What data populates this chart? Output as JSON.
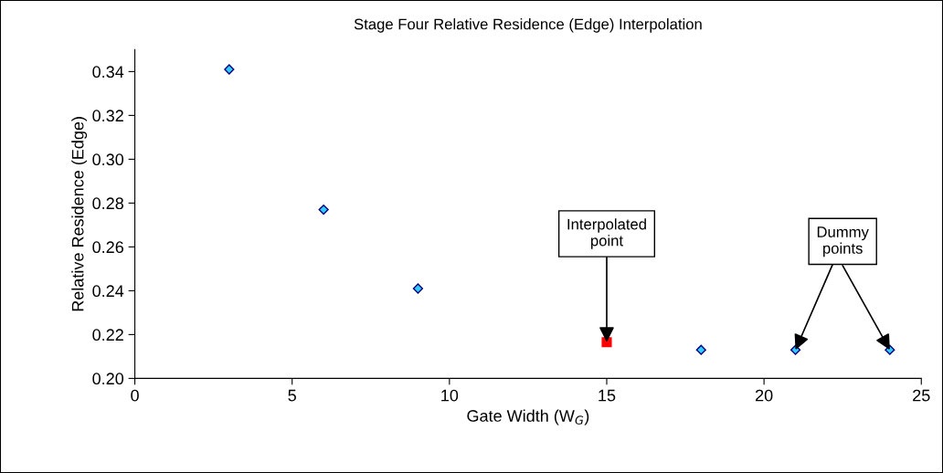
{
  "chart_data": {
    "type": "scatter",
    "title": "Stage Four Relative Residence (Edge) Interpolation",
    "xlabel": "Gate Width (W$_{G}$)",
    "ylabel": "Relative Residence (Edge)",
    "series": [
      {
        "x": [
          3,
          6,
          9,
          18,
          21,
          24
        ],
        "values": [
          0.341,
          0.277,
          0.241,
          0.213,
          0.213,
          0.213
        ],
        "color": "#33ccff",
        "marker": "diamond"
      },
      {
        "x": [
          15
        ],
        "values": [
          0.2165
        ],
        "color": "#ff0000",
        "marker": "square"
      }
    ],
    "annotations": [
      {
        "text": "Interpolated\npoint",
        "x": 15,
        "y": 0.2165
      },
      {
        "text": "Dummy\npoints",
        "x": 21,
        "y": 0.213
      }
    ],
    "xlim": [
      0,
      25
    ],
    "xticks": [
      0,
      5,
      10,
      15,
      20,
      25
    ],
    "ylim": [
      0.2,
      0.35
    ],
    "yticks": [
      {
        "value": 0.2,
        "label": "0.20"
      },
      {
        "value": 0.22,
        "label": "0.22"
      },
      {
        "value": 0.24,
        "label": "0.24"
      },
      {
        "value": 0.26,
        "label": "0.26"
      },
      {
        "value": 0.28,
        "label": "0.28"
      },
      {
        "value": 0.3,
        "label": "0.30"
      },
      {
        "value": 0.32,
        "label": "0.32"
      },
      {
        "value": 0.34,
        "label": "0.34"
      }
    ],
    "grid": false,
    "legend": false
  }
}
